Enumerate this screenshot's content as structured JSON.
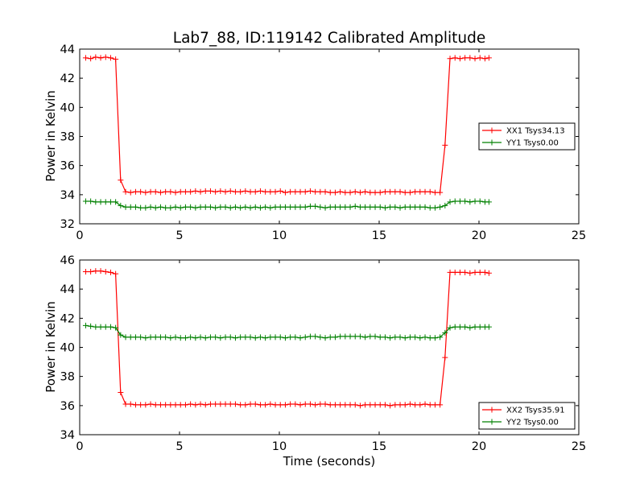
{
  "title": "Lab7_88, ID:119142 Calibrated Amplitude",
  "colors": {
    "xx": "#ff0000",
    "yy": "#008000"
  },
  "chart_data": [
    {
      "type": "line",
      "title": "Lab7_88, ID:119142 Calibrated Amplitude",
      "xlabel": "",
      "ylabel": "Power in Kelvin",
      "xlim": [
        0,
        25
      ],
      "ylim": [
        32,
        44
      ],
      "xticks": [
        "0",
        "5",
        "10",
        "15",
        "20",
        "25"
      ],
      "yticks": [
        "32",
        "34",
        "36",
        "38",
        "40",
        "42",
        "44"
      ],
      "grid": false,
      "legend_position": "center-right",
      "series": [
        {
          "name": "XX1 Tsys34.13",
          "color": "#ff0000",
          "x": [
            0.3,
            0.55,
            0.8,
            1.05,
            1.3,
            1.55,
            1.8,
            2.05,
            2.3,
            2.55,
            2.8,
            3.05,
            3.3,
            3.55,
            3.8,
            4.05,
            4.3,
            4.55,
            4.8,
            5.05,
            5.3,
            5.55,
            5.8,
            6.05,
            6.3,
            6.55,
            6.8,
            7.05,
            7.3,
            7.55,
            7.8,
            8.05,
            8.3,
            8.55,
            8.8,
            9.05,
            9.3,
            9.55,
            9.8,
            10.05,
            10.3,
            10.55,
            10.8,
            11.05,
            11.3,
            11.55,
            11.8,
            12.05,
            12.3,
            12.55,
            12.8,
            13.05,
            13.3,
            13.55,
            13.8,
            14.05,
            14.3,
            14.55,
            14.8,
            15.05,
            15.3,
            15.55,
            15.8,
            16.05,
            16.3,
            16.55,
            16.8,
            17.05,
            17.3,
            17.55,
            17.8,
            18.05,
            18.3,
            18.55,
            18.8,
            19.05,
            19.3,
            19.55,
            19.8,
            20.05,
            20.3,
            20.5
          ],
          "y": [
            43.4,
            43.35,
            43.45,
            43.4,
            43.45,
            43.4,
            43.3,
            35.0,
            34.2,
            34.15,
            34.2,
            34.2,
            34.15,
            34.2,
            34.2,
            34.15,
            34.2,
            34.2,
            34.15,
            34.2,
            34.2,
            34.2,
            34.25,
            34.2,
            34.25,
            34.25,
            34.2,
            34.25,
            34.2,
            34.25,
            34.2,
            34.2,
            34.25,
            34.2,
            34.2,
            34.25,
            34.2,
            34.2,
            34.2,
            34.25,
            34.15,
            34.2,
            34.2,
            34.2,
            34.2,
            34.25,
            34.2,
            34.2,
            34.2,
            34.15,
            34.15,
            34.2,
            34.15,
            34.15,
            34.2,
            34.15,
            34.2,
            34.15,
            34.15,
            34.15,
            34.2,
            34.2,
            34.2,
            34.2,
            34.15,
            34.15,
            34.2,
            34.2,
            34.2,
            34.2,
            34.15,
            34.15,
            37.4,
            43.35,
            43.4,
            43.35,
            43.4,
            43.4,
            43.35,
            43.4,
            43.35,
            43.4
          ]
        },
        {
          "name": "YY1 Tsys0.00",
          "color": "#008000",
          "x": [
            0.3,
            0.55,
            0.8,
            1.05,
            1.3,
            1.55,
            1.8,
            2.05,
            2.3,
            2.55,
            2.8,
            3.05,
            3.3,
            3.55,
            3.8,
            4.05,
            4.3,
            4.55,
            4.8,
            5.05,
            5.3,
            5.55,
            5.8,
            6.05,
            6.3,
            6.55,
            6.8,
            7.05,
            7.3,
            7.55,
            7.8,
            8.05,
            8.3,
            8.55,
            8.8,
            9.05,
            9.3,
            9.55,
            9.8,
            10.05,
            10.3,
            10.55,
            10.8,
            11.05,
            11.3,
            11.55,
            11.8,
            12.05,
            12.3,
            12.55,
            12.8,
            13.05,
            13.3,
            13.55,
            13.8,
            14.05,
            14.3,
            14.55,
            14.8,
            15.05,
            15.3,
            15.55,
            15.8,
            16.05,
            16.3,
            16.55,
            16.8,
            17.05,
            17.3,
            17.55,
            17.8,
            18.05,
            18.3,
            18.55,
            18.8,
            19.05,
            19.3,
            19.55,
            19.8,
            20.05,
            20.3,
            20.5
          ],
          "y": [
            33.55,
            33.55,
            33.5,
            33.5,
            33.5,
            33.5,
            33.5,
            33.25,
            33.15,
            33.15,
            33.15,
            33.1,
            33.1,
            33.15,
            33.1,
            33.15,
            33.1,
            33.1,
            33.15,
            33.1,
            33.15,
            33.15,
            33.1,
            33.15,
            33.15,
            33.15,
            33.1,
            33.15,
            33.15,
            33.1,
            33.15,
            33.1,
            33.15,
            33.1,
            33.15,
            33.1,
            33.15,
            33.1,
            33.15,
            33.15,
            33.15,
            33.15,
            33.15,
            33.15,
            33.15,
            33.2,
            33.2,
            33.15,
            33.1,
            33.15,
            33.15,
            33.15,
            33.15,
            33.15,
            33.2,
            33.15,
            33.15,
            33.15,
            33.15,
            33.15,
            33.1,
            33.15,
            33.15,
            33.1,
            33.15,
            33.15,
            33.15,
            33.15,
            33.15,
            33.1,
            33.1,
            33.15,
            33.25,
            33.5,
            33.55,
            33.55,
            33.55,
            33.5,
            33.55,
            33.55,
            33.5,
            33.5
          ]
        }
      ]
    },
    {
      "type": "line",
      "title": "",
      "xlabel": "Time (seconds)",
      "ylabel": "Power in Kelvin",
      "xlim": [
        0,
        25
      ],
      "ylim": [
        34,
        46
      ],
      "xticks": [
        "0",
        "5",
        "10",
        "15",
        "20",
        "25"
      ],
      "yticks": [
        "34",
        "36",
        "38",
        "40",
        "42",
        "44",
        "46"
      ],
      "grid": false,
      "legend_position": "lower-right",
      "series": [
        {
          "name": "XX2 Tsys35.91",
          "color": "#ff0000",
          "x": [
            0.3,
            0.55,
            0.8,
            1.05,
            1.3,
            1.55,
            1.8,
            2.05,
            2.3,
            2.55,
            2.8,
            3.05,
            3.3,
            3.55,
            3.8,
            4.05,
            4.3,
            4.55,
            4.8,
            5.05,
            5.3,
            5.55,
            5.8,
            6.05,
            6.3,
            6.55,
            6.8,
            7.05,
            7.3,
            7.55,
            7.8,
            8.05,
            8.3,
            8.55,
            8.8,
            9.05,
            9.3,
            9.55,
            9.8,
            10.05,
            10.3,
            10.55,
            10.8,
            11.05,
            11.3,
            11.55,
            11.8,
            12.05,
            12.3,
            12.55,
            12.8,
            13.05,
            13.3,
            13.55,
            13.8,
            14.05,
            14.3,
            14.55,
            14.8,
            15.05,
            15.3,
            15.55,
            15.8,
            16.05,
            16.3,
            16.55,
            16.8,
            17.05,
            17.3,
            17.55,
            17.8,
            18.05,
            18.3,
            18.55,
            18.8,
            19.05,
            19.3,
            19.55,
            19.8,
            20.05,
            20.3,
            20.5
          ],
          "y": [
            45.2,
            45.2,
            45.25,
            45.25,
            45.2,
            45.15,
            45.05,
            36.9,
            36.1,
            36.1,
            36.05,
            36.05,
            36.05,
            36.1,
            36.05,
            36.05,
            36.05,
            36.05,
            36.05,
            36.05,
            36.05,
            36.1,
            36.05,
            36.1,
            36.05,
            36.1,
            36.1,
            36.1,
            36.1,
            36.1,
            36.1,
            36.05,
            36.05,
            36.1,
            36.1,
            36.05,
            36.05,
            36.1,
            36.05,
            36.05,
            36.05,
            36.1,
            36.1,
            36.05,
            36.1,
            36.1,
            36.05,
            36.1,
            36.1,
            36.05,
            36.05,
            36.05,
            36.05,
            36.05,
            36.05,
            36.0,
            36.05,
            36.05,
            36.05,
            36.05,
            36.05,
            36.0,
            36.05,
            36.05,
            36.05,
            36.1,
            36.05,
            36.05,
            36.1,
            36.05,
            36.05,
            36.05,
            39.3,
            45.15,
            45.15,
            45.15,
            45.15,
            45.1,
            45.15,
            45.15,
            45.15,
            45.1
          ]
        },
        {
          "name": "YY2 Tsys0.00",
          "color": "#008000",
          "x": [
            0.3,
            0.55,
            0.8,
            1.05,
            1.3,
            1.55,
            1.8,
            2.05,
            2.3,
            2.55,
            2.8,
            3.05,
            3.3,
            3.55,
            3.8,
            4.05,
            4.3,
            4.55,
            4.8,
            5.05,
            5.3,
            5.55,
            5.8,
            6.05,
            6.3,
            6.55,
            6.8,
            7.05,
            7.3,
            7.55,
            7.8,
            8.05,
            8.3,
            8.55,
            8.8,
            9.05,
            9.3,
            9.55,
            9.8,
            10.05,
            10.3,
            10.55,
            10.8,
            11.05,
            11.3,
            11.55,
            11.8,
            12.05,
            12.3,
            12.55,
            12.8,
            13.05,
            13.3,
            13.55,
            13.8,
            14.05,
            14.3,
            14.55,
            14.8,
            15.05,
            15.3,
            15.55,
            15.8,
            16.05,
            16.3,
            16.55,
            16.8,
            17.05,
            17.3,
            17.55,
            17.8,
            18.05,
            18.3,
            18.55,
            18.8,
            19.05,
            19.3,
            19.55,
            19.8,
            20.05,
            20.3,
            20.5
          ],
          "y": [
            41.5,
            41.45,
            41.4,
            41.4,
            41.4,
            41.4,
            41.35,
            40.85,
            40.7,
            40.7,
            40.7,
            40.7,
            40.65,
            40.7,
            40.7,
            40.7,
            40.7,
            40.65,
            40.7,
            40.65,
            40.65,
            40.7,
            40.65,
            40.7,
            40.65,
            40.7,
            40.7,
            40.65,
            40.7,
            40.7,
            40.65,
            40.7,
            40.7,
            40.7,
            40.65,
            40.7,
            40.65,
            40.7,
            40.7,
            40.7,
            40.65,
            40.7,
            40.7,
            40.65,
            40.7,
            40.75,
            40.75,
            40.7,
            40.65,
            40.7,
            40.7,
            40.75,
            40.75,
            40.75,
            40.75,
            40.75,
            40.7,
            40.75,
            40.75,
            40.7,
            40.7,
            40.65,
            40.7,
            40.7,
            40.65,
            40.7,
            40.7,
            40.65,
            40.7,
            40.65,
            40.65,
            40.7,
            41.0,
            41.35,
            41.4,
            41.4,
            41.4,
            41.35,
            41.4,
            41.4,
            41.4,
            41.4
          ]
        }
      ]
    }
  ]
}
